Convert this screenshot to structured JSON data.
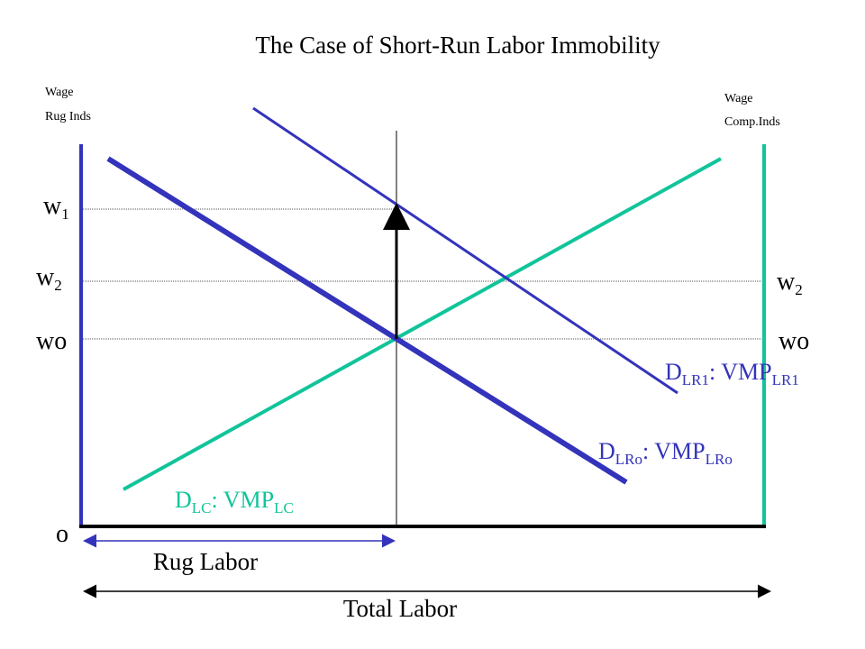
{
  "title": "The Case of Short-Run Labor Immobility",
  "left_axis": {
    "line1": "Wage",
    "line2": "Rug Inds"
  },
  "right_axis": {
    "line1": "Wage",
    "line2": "Comp.Inds"
  },
  "wage_levels": {
    "w1": {
      "base": "w",
      "sub": "1"
    },
    "w2": {
      "base": "w",
      "sub": "2"
    },
    "wo": "wo"
  },
  "origin_label": "o",
  "curves": {
    "dlr1": {
      "d": "D",
      "d_sub": "LR1",
      "mid": ": VMP",
      "v_sub": "LR1",
      "color": "#3333bb"
    },
    "dlro": {
      "d": "D",
      "d_sub": "LRo",
      "mid": ": VMP",
      "v_sub": "LRo",
      "color": "#3333bb"
    },
    "dlc": {
      "d": "D",
      "d_sub": "LC",
      "mid": ": VMP",
      "v_sub": "LC",
      "color": "#11c49a"
    }
  },
  "x_labels": {
    "rug_labor": "Rug Labor",
    "total_labor": "Total Labor"
  },
  "colors": {
    "blue": "#3333bb",
    "green": "#11c49a",
    "axis": "#000000",
    "grid": "#555555"
  }
}
